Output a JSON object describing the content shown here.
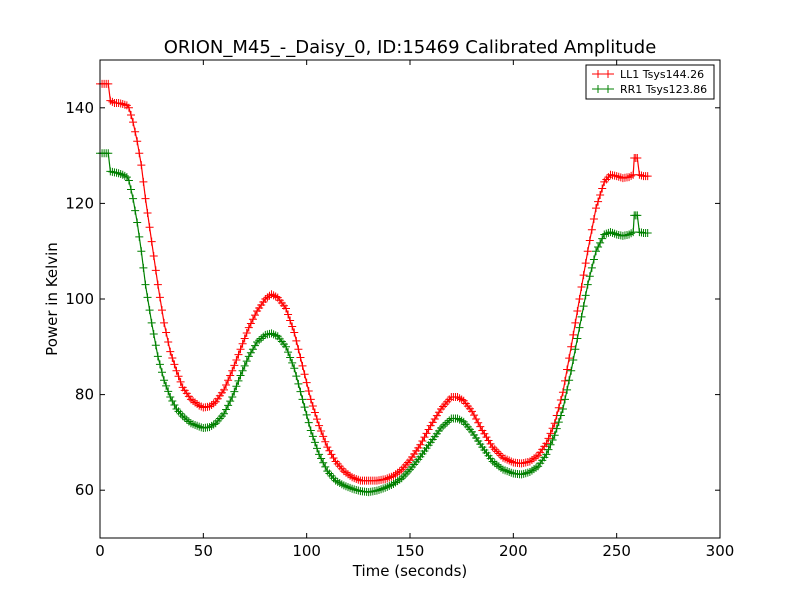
{
  "chart_data": {
    "type": "line",
    "title": "ORION_M45_-_Daisy_0, ID:15469 Calibrated Amplitude",
    "xlabel": "Time (seconds)",
    "ylabel": "Power in Kelvin",
    "xlim": [
      0,
      300
    ],
    "ylim": [
      50,
      150
    ],
    "xticks": [
      0,
      50,
      100,
      150,
      200,
      250,
      300
    ],
    "yticks": [
      60,
      80,
      100,
      120,
      140
    ],
    "grid": false,
    "legend_position": "top-right",
    "series": [
      {
        "name": "LL1 Tsys144.26",
        "color": "#ff0000",
        "marker": "+",
        "points": [
          [
            0,
            145
          ],
          [
            2,
            145
          ],
          [
            4,
            145
          ],
          [
            5,
            141.5
          ],
          [
            7,
            141
          ],
          [
            9,
            141
          ],
          [
            11,
            140.8
          ],
          [
            13,
            140.5
          ],
          [
            14,
            140
          ],
          [
            16,
            137
          ],
          [
            18,
            133
          ],
          [
            20,
            128
          ],
          [
            22,
            121
          ],
          [
            25,
            112
          ],
          [
            28,
            103
          ],
          [
            31,
            95
          ],
          [
            34,
            89
          ],
          [
            37,
            85
          ],
          [
            40,
            81.5
          ],
          [
            44,
            79
          ],
          [
            48,
            77.7
          ],
          [
            50,
            77.3
          ],
          [
            53,
            77.5
          ],
          [
            56,
            78.5
          ],
          [
            60,
            81
          ],
          [
            64,
            85
          ],
          [
            68,
            89.5
          ],
          [
            72,
            94
          ],
          [
            76,
            97.5
          ],
          [
            80,
            100
          ],
          [
            83,
            101
          ],
          [
            86,
            100.3
          ],
          [
            90,
            98
          ],
          [
            94,
            93
          ],
          [
            98,
            86
          ],
          [
            102,
            79
          ],
          [
            106,
            73.5
          ],
          [
            110,
            69
          ],
          [
            114,
            66
          ],
          [
            118,
            64
          ],
          [
            122,
            62.7
          ],
          [
            126,
            62
          ],
          [
            130,
            62
          ],
          [
            134,
            62
          ],
          [
            138,
            62.3
          ],
          [
            142,
            63
          ],
          [
            146,
            64.3
          ],
          [
            150,
            66.3
          ],
          [
            155,
            69.5
          ],
          [
            160,
            73.5
          ],
          [
            165,
            77
          ],
          [
            170,
            79.5
          ],
          [
            173,
            79.5
          ],
          [
            176,
            78.7
          ],
          [
            180,
            76.5
          ],
          [
            185,
            72.5
          ],
          [
            190,
            69
          ],
          [
            195,
            66.8
          ],
          [
            200,
            65.8
          ],
          [
            204,
            65.6
          ],
          [
            208,
            66
          ],
          [
            212,
            67.3
          ],
          [
            216,
            69.8
          ],
          [
            220,
            74
          ],
          [
            224,
            80.5
          ],
          [
            228,
            90
          ],
          [
            232,
            100
          ],
          [
            236,
            110
          ],
          [
            240,
            119
          ],
          [
            244,
            124.5
          ],
          [
            247,
            126
          ],
          [
            250,
            125.7
          ],
          [
            253,
            125.3
          ],
          [
            256,
            125.5
          ],
          [
            258,
            126
          ],
          [
            258.5,
            129.5
          ],
          [
            260,
            129.5
          ],
          [
            261,
            126
          ],
          [
            263,
            125.7
          ],
          [
            265,
            125.7
          ]
        ]
      },
      {
        "name": "RR1 Tsys123.86",
        "color": "#008000",
        "marker": "+",
        "points": [
          [
            0,
            130.5
          ],
          [
            2,
            130.5
          ],
          [
            4,
            130.5
          ],
          [
            5,
            126.7
          ],
          [
            7,
            126.5
          ],
          [
            9,
            126.3
          ],
          [
            11,
            126
          ],
          [
            13,
            125.5
          ],
          [
            14,
            124.8
          ],
          [
            16,
            121
          ],
          [
            18,
            116
          ],
          [
            20,
            110
          ],
          [
            22,
            103
          ],
          [
            25,
            95
          ],
          [
            28,
            88
          ],
          [
            31,
            83
          ],
          [
            34,
            79.5
          ],
          [
            37,
            77
          ],
          [
            40,
            75.5
          ],
          [
            44,
            74
          ],
          [
            48,
            73.3
          ],
          [
            50,
            73
          ],
          [
            53,
            73.2
          ],
          [
            56,
            74
          ],
          [
            60,
            76
          ],
          [
            64,
            79.5
          ],
          [
            68,
            84
          ],
          [
            72,
            88
          ],
          [
            76,
            91
          ],
          [
            80,
            92.5
          ],
          [
            83,
            92.8
          ],
          [
            86,
            92.2
          ],
          [
            90,
            90
          ],
          [
            94,
            85.5
          ],
          [
            98,
            79
          ],
          [
            102,
            72.5
          ],
          [
            106,
            67.5
          ],
          [
            110,
            64
          ],
          [
            114,
            62
          ],
          [
            118,
            61
          ],
          [
            122,
            60.3
          ],
          [
            126,
            59.8
          ],
          [
            130,
            59.6
          ],
          [
            134,
            59.9
          ],
          [
            138,
            60.5
          ],
          [
            142,
            61.3
          ],
          [
            146,
            62.5
          ],
          [
            150,
            64.3
          ],
          [
            155,
            67
          ],
          [
            160,
            70
          ],
          [
            165,
            73
          ],
          [
            170,
            75
          ],
          [
            173,
            75
          ],
          [
            176,
            74.3
          ],
          [
            180,
            72.2
          ],
          [
            185,
            69
          ],
          [
            190,
            66
          ],
          [
            195,
            64.3
          ],
          [
            200,
            63.5
          ],
          [
            204,
            63.3
          ],
          [
            208,
            63.8
          ],
          [
            212,
            65
          ],
          [
            216,
            67.5
          ],
          [
            220,
            71.5
          ],
          [
            224,
            77
          ],
          [
            228,
            85
          ],
          [
            232,
            94
          ],
          [
            236,
            103
          ],
          [
            240,
            110
          ],
          [
            244,
            113.5
          ],
          [
            247,
            114
          ],
          [
            250,
            113.5
          ],
          [
            253,
            113.2
          ],
          [
            256,
            113.5
          ],
          [
            258,
            114
          ],
          [
            258.5,
            117.5
          ],
          [
            260,
            117.5
          ],
          [
            261,
            114
          ],
          [
            263,
            113.8
          ],
          [
            265,
            113.8
          ]
        ]
      }
    ]
  }
}
